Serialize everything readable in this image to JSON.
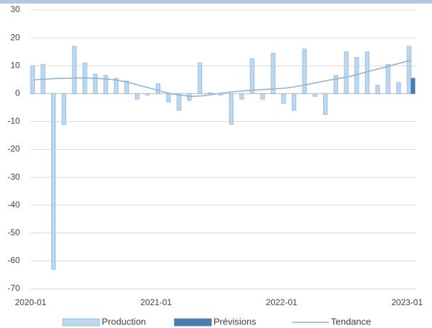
{
  "chart_data": {
    "type": "bar",
    "categories": [
      "2020-01",
      null,
      null,
      null,
      null,
      null,
      null,
      null,
      null,
      null,
      null,
      null,
      "2021-01",
      null,
      null,
      null,
      null,
      null,
      null,
      null,
      null,
      null,
      null,
      null,
      "2022-01",
      null,
      null,
      null,
      null,
      null,
      null,
      null,
      null,
      null,
      null,
      null,
      "2023-01"
    ],
    "series": [
      {
        "name": "Production",
        "type": "bar",
        "color": "#bdd7ee",
        "stroke": "#8fb8de",
        "values": [
          10,
          10.5,
          -63,
          -11,
          17,
          11,
          7,
          6.5,
          5.5,
          4.5,
          -2,
          -0.5,
          3.5,
          -3,
          -6,
          -2.5,
          11,
          0.3,
          -0.5,
          -11,
          -2,
          12.5,
          -2,
          14.5,
          -3.5,
          -6,
          16,
          -1,
          -7.5,
          6.5,
          15,
          13,
          15,
          3,
          10.5,
          4,
          17
        ]
      },
      {
        "name": "Prévisions",
        "type": "bar",
        "color": "#4a7eb0",
        "stroke": "#4a7eb0",
        "values": [
          null,
          null,
          null,
          null,
          null,
          null,
          null,
          null,
          null,
          null,
          null,
          null,
          null,
          null,
          null,
          null,
          null,
          null,
          null,
          null,
          null,
          null,
          null,
          null,
          null,
          null,
          null,
          null,
          null,
          null,
          null,
          null,
          null,
          null,
          null,
          null,
          5.5
        ]
      },
      {
        "name": "Tendance",
        "type": "line",
        "color": "#8eb4d8",
        "values": [
          5,
          5.2,
          5.4,
          5.5,
          5.6,
          5.6,
          5.5,
          5.2,
          4.8,
          4,
          3,
          2,
          1,
          0,
          -0.6,
          -1,
          -0.8,
          -0.3,
          0.2,
          0.7,
          1,
          1.3,
          1.5,
          1.7,
          2,
          2.5,
          3.2,
          4,
          4.7,
          5.4,
          6,
          7,
          8,
          9,
          10,
          11,
          12
        ]
      }
    ],
    "ylim": [
      -70,
      30
    ],
    "yticks": [
      -70,
      -60,
      -50,
      -40,
      -30,
      -20,
      -10,
      0,
      10,
      20,
      30
    ],
    "grid": true
  }
}
